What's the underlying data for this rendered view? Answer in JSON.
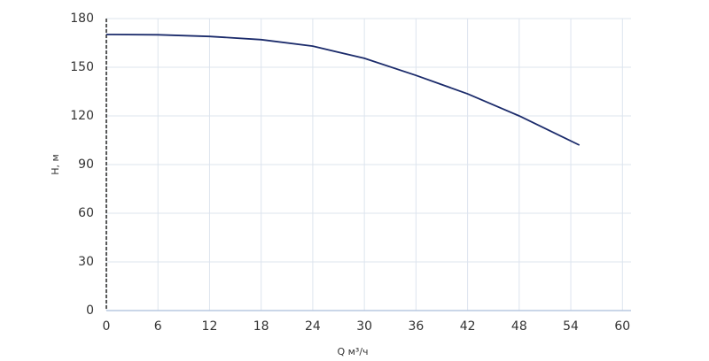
{
  "chart_data": {
    "type": "line",
    "x_label": "Q м³/ч",
    "y_label": "H, м",
    "x": [
      0,
      6,
      12,
      18,
      24,
      30,
      36,
      42,
      48,
      55
    ],
    "series": [
      {
        "name": "H",
        "color": "#1b2b6b",
        "values": [
          170.2,
          170,
          169,
          167,
          163,
          155.5,
          145,
          133.6,
          120,
          102
        ]
      }
    ],
    "xlim": [
      0,
      61
    ],
    "xticks": [
      0,
      6,
      12,
      18,
      24,
      30,
      36,
      42,
      48,
      54,
      60
    ],
    "ylim": [
      0,
      180
    ],
    "yticks": [
      0,
      30,
      60,
      90,
      120,
      150,
      180
    ],
    "grid": true
  }
}
